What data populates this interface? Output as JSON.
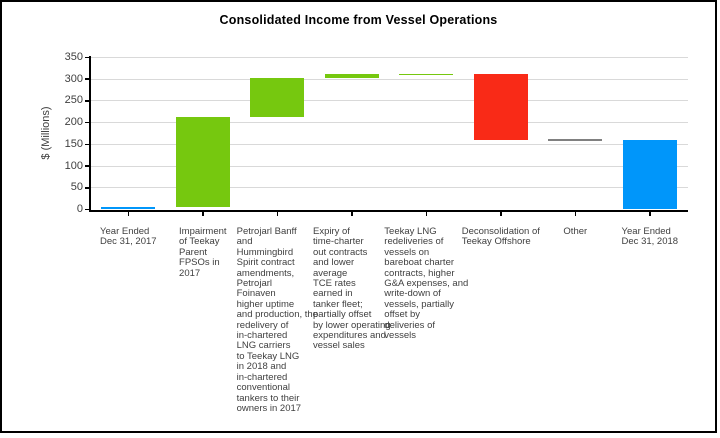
{
  "title": "Consolidated Income from Vessel Operations",
  "y_axis": {
    "label": "$ (Millions)",
    "min": 0,
    "max": 350,
    "tick_step": 50,
    "ticks": [
      0,
      50,
      100,
      150,
      200,
      250,
      300,
      350
    ]
  },
  "colors": {
    "total": "#0096FA",
    "increase": "#76C80F",
    "decrease": "#F92A17",
    "other": "#808080",
    "gridline": "#D9D9D9",
    "axis": "#000000",
    "text": "#3F3F3F"
  },
  "chart_data": {
    "type": "bar",
    "subtype": "waterfall",
    "title": "Consolidated Income from Vessel Operations",
    "xlabel": "",
    "ylabel": "$ (Millions)",
    "ylim": [
      0,
      350
    ],
    "grid": true,
    "legend": false,
    "bars": [
      {
        "category": "Year Ended Dec 31, 2017",
        "label_lines": [
          "Year Ended",
          "Dec 31, 2017"
        ],
        "start": 0,
        "end": 6,
        "value": 6,
        "role": "total"
      },
      {
        "category": "Impairment of Teekay Parent FPSOs in 2017",
        "label_lines": [
          "Impairment",
          "of Teekay",
          "Parent",
          "FPSOs in",
          "2017"
        ],
        "start": 6,
        "end": 212,
        "value": 206,
        "role": "increase"
      },
      {
        "category": "Petrojarl Banff and Hummingbird Spirit contract amendments, Petrojarl Foinaven higher uptime and production, the redelivery of in-chartered LNG carriers to Teekay LNG in 2018 and in-chartered conventional tankers to their owners in 2017",
        "label_lines": [
          "Petrojarl Banff",
          "and",
          "Hummingbird",
          "Spirit contract",
          "amendments,",
          "Petrojarl",
          "Foinaven",
          "higher uptime",
          "and production, the",
          "redelivery of",
          "in-chartered",
          "LNG carriers",
          "to Teekay LNG",
          "in 2018 and",
          "in-chartered",
          "conventional",
          "tankers to their",
          "owners in 2017"
        ],
        "start": 212,
        "end": 303,
        "value": 91,
        "role": "increase"
      },
      {
        "category": "Expiry of time-charter out contracts and lower average TCE rates earned in tanker fleet; partially offset by lower operating expenditures and vessel sales",
        "label_lines": [
          "Expiry of",
          "time-charter",
          "out contracts",
          "and lower",
          "average",
          "TCE rates",
          "earned in",
          "tanker fleet;",
          "partially offset",
          "by lower operating",
          "expenditures and",
          "vessel sales"
        ],
        "start": 303,
        "end": 311,
        "value": 8,
        "role": "increase"
      },
      {
        "category": "Teekay LNG redeliveries of vessels on bareboat charter contracts, higher G&A expenses, and write-down of vessels, partially offset by deliveries of vessels",
        "label_lines": [
          "Teekay LNG",
          "redeliveries of",
          "vessels on",
          "bareboat charter",
          "contracts, higher",
          "G&A expenses, and",
          "write-down of",
          "vessels, partially",
          "offset by",
          "deliveries of",
          "vessels"
        ],
        "start": 311,
        "end": 312,
        "value": 1,
        "role": "increase"
      },
      {
        "category": "Deconsolidation of Teekay Offshore",
        "label_lines": [
          "Deconsolidation of",
          "Teekay Offshore"
        ],
        "start": 312,
        "end": 161,
        "value": -151,
        "role": "decrease"
      },
      {
        "category": "Other",
        "label_lines": [
          "Other"
        ],
        "start": 161,
        "end": 161,
        "value": 0,
        "role": "other"
      },
      {
        "category": "Year Ended Dec 31, 2018",
        "label_lines": [
          "Year Ended",
          "Dec 31, 2018"
        ],
        "start": 0,
        "end": 161,
        "value": 161,
        "role": "total"
      }
    ]
  }
}
